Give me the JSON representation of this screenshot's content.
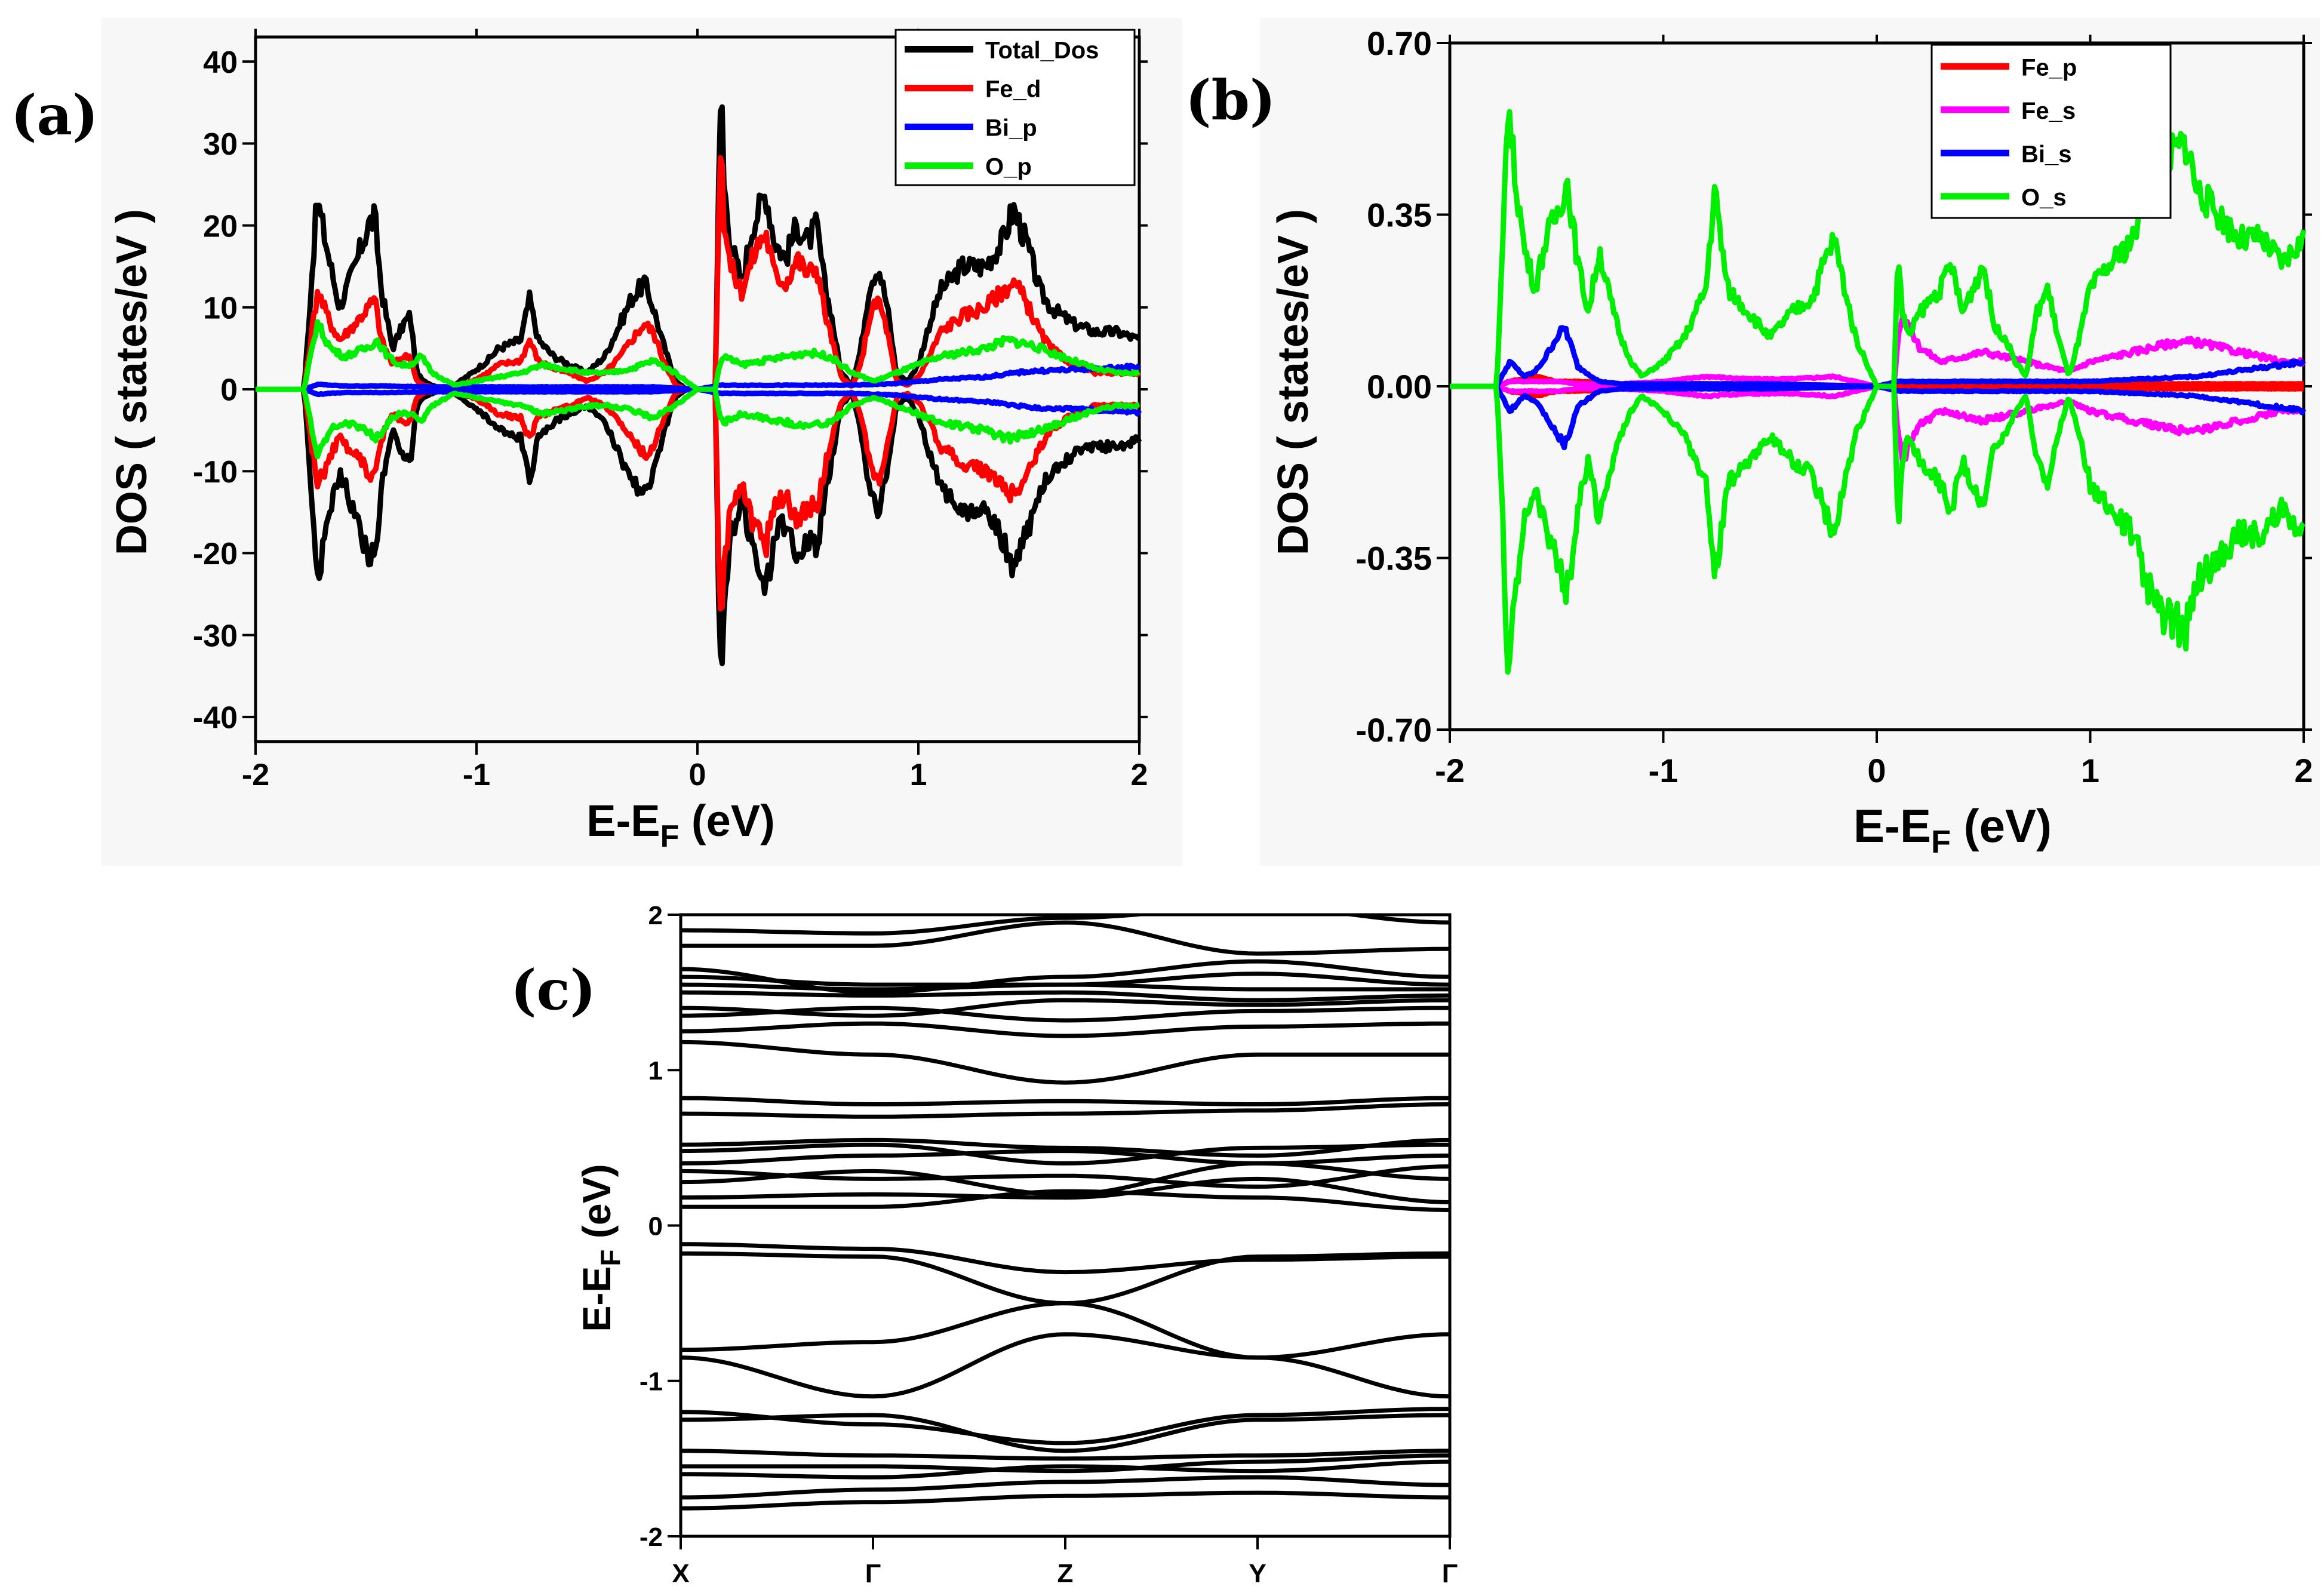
{
  "figure": {
    "panel_labels": [
      "(a)",
      "(b)",
      "(c)"
    ]
  },
  "chart_data": [
    {
      "id": "a",
      "type": "line",
      "title": "",
      "xlabel": "E-E",
      "xlabel_sub": "F",
      "xlabel_suffix": " (eV)",
      "ylabel": "DOS ( states/eV )",
      "xlim": [
        -2,
        2
      ],
      "ylim": [
        -43,
        43
      ],
      "xticks": [
        -2,
        -1,
        0,
        1,
        2
      ],
      "xtick_labels": [
        "-2",
        "-1",
        "0",
        "1",
        "2"
      ],
      "yticks": [
        -40,
        -30,
        -20,
        -10,
        0,
        10,
        20,
        30,
        40
      ],
      "ytick_labels": [
        "-40",
        "-30",
        "-20",
        "-10",
        "0",
        "10",
        "20",
        "30",
        "40"
      ],
      "symmetric": true,
      "legend_position": "top-right",
      "series": [
        {
          "name": "Total_Dos",
          "color": "#000000",
          "x": [
            -2.0,
            -1.78,
            -1.73,
            -1.72,
            -1.66,
            -1.62,
            -1.55,
            -1.49,
            -1.46,
            -1.43,
            -1.38,
            -1.33,
            -1.3,
            -1.27,
            -1.24,
            -1.2,
            -1.15,
            -1.1,
            -1.02,
            -0.95,
            -0.9,
            -0.8,
            -0.76,
            -0.72,
            -0.65,
            -0.58,
            -0.5,
            -0.42,
            -0.35,
            -0.3,
            -0.24,
            -0.2,
            -0.16,
            -0.1,
            -0.05,
            0.0,
            0.08,
            0.1,
            0.11,
            0.12,
            0.15,
            0.2,
            0.25,
            0.28,
            0.31,
            0.35,
            0.4,
            0.45,
            0.5,
            0.54,
            0.58,
            0.6,
            0.65,
            0.7,
            0.74,
            0.78,
            0.82,
            0.86,
            0.9,
            0.95,
            1.0,
            1.05,
            1.1,
            1.2,
            1.3,
            1.38,
            1.43,
            1.46,
            1.5,
            1.55,
            1.6,
            1.7,
            1.8,
            1.9,
            2.0
          ],
          "y": [
            0,
            0,
            20,
            23,
            15,
            10,
            15,
            20,
            21,
            12,
            5,
            8,
            9,
            2,
            1,
            0.5,
            0,
            0.5,
            2,
            3.5,
            5,
            6,
            11,
            6,
            4,
            3,
            2,
            4,
            8,
            11,
            13,
            10,
            6,
            1,
            0,
            0,
            0,
            30,
            37,
            25,
            18,
            13,
            20,
            22,
            24,
            18,
            16,
            20,
            18,
            20,
            12,
            10,
            2,
            0.5,
            5,
            13,
            15,
            10,
            2,
            1,
            3,
            8,
            12,
            15,
            15,
            18,
            22,
            20,
            17,
            12,
            10,
            8,
            7,
            7,
            6
          ]
        },
        {
          "name": "Fe_d",
          "color": "#ff0000",
          "x": [
            -2.0,
            -1.78,
            -1.73,
            -1.72,
            -1.66,
            -1.62,
            -1.55,
            -1.49,
            -1.46,
            -1.43,
            -1.38,
            -1.33,
            -1.3,
            -1.27,
            -1.24,
            -1.2,
            -1.15,
            -1.1,
            -1.02,
            -0.95,
            -0.9,
            -0.8,
            -0.76,
            -0.72,
            -0.65,
            -0.58,
            -0.5,
            -0.42,
            -0.35,
            -0.3,
            -0.24,
            -0.2,
            -0.16,
            -0.1,
            -0.05,
            0.0,
            0.08,
            0.1,
            0.11,
            0.12,
            0.15,
            0.2,
            0.25,
            0.28,
            0.31,
            0.35,
            0.4,
            0.45,
            0.5,
            0.54,
            0.58,
            0.6,
            0.65,
            0.7,
            0.74,
            0.78,
            0.82,
            0.86,
            0.9,
            0.95,
            1.0,
            1.05,
            1.1,
            1.2,
            1.3,
            1.38,
            1.43,
            1.46,
            1.5,
            1.55,
            1.6,
            1.7,
            1.8,
            1.9,
            2.0
          ],
          "y": [
            0,
            0,
            10,
            12,
            8,
            6,
            8,
            10,
            11,
            6,
            3,
            4,
            4,
            1,
            0.5,
            0.3,
            0,
            0.3,
            1,
            2,
            3,
            3.5,
            6,
            3.5,
            2.5,
            2,
            1,
            2,
            4,
            6,
            8,
            7,
            4,
            0.5,
            0,
            0,
            0,
            26,
            31,
            21,
            15,
            12,
            16,
            18,
            19,
            14,
            13,
            16,
            14,
            15,
            9,
            7,
            1.5,
            0.3,
            3,
            9,
            11,
            7,
            1,
            0.5,
            1.5,
            4,
            7,
            9,
            10,
            12,
            13,
            12,
            10,
            7,
            5,
            3,
            2,
            2,
            2
          ]
        },
        {
          "name": "Bi_p",
          "color": "#0000ff",
          "x": [
            -2.0,
            -1.78,
            -1.72,
            -1.6,
            -1.4,
            -1.2,
            -1.0,
            -0.8,
            -0.6,
            -0.4,
            -0.2,
            0.0,
            0.1,
            0.3,
            0.5,
            0.7,
            0.9,
            1.1,
            1.3,
            1.5,
            1.7,
            1.9,
            2.0
          ],
          "y": [
            0,
            0,
            0.6,
            0.4,
            0.4,
            0.3,
            0.3,
            0.3,
            0.3,
            0.3,
            0.3,
            0,
            0.5,
            0.5,
            0.5,
            0.5,
            0.7,
            1.2,
            1.5,
            2.2,
            2.4,
            2.6,
            2.8
          ]
        },
        {
          "name": "O_p",
          "color": "#00ee00",
          "x": [
            -2.0,
            -1.78,
            -1.73,
            -1.72,
            -1.66,
            -1.6,
            -1.5,
            -1.45,
            -1.4,
            -1.35,
            -1.3,
            -1.25,
            -1.2,
            -1.1,
            -1.0,
            -0.9,
            -0.8,
            -0.7,
            -0.6,
            -0.5,
            -0.4,
            -0.3,
            -0.2,
            -0.1,
            0.0,
            0.08,
            0.1,
            0.12,
            0.2,
            0.3,
            0.4,
            0.5,
            0.6,
            0.7,
            0.8,
            0.9,
            1.0,
            1.1,
            1.2,
            1.3,
            1.4,
            1.5,
            1.6,
            1.7,
            1.8,
            1.9,
            2.0
          ],
          "y": [
            0,
            0,
            7,
            8,
            5,
            4,
            5,
            6,
            4,
            3,
            3,
            4,
            2,
            0.5,
            1,
            1.5,
            2,
            3,
            2.5,
            2,
            2,
            2.5,
            3.5,
            2,
            0,
            0,
            3,
            4,
            3,
            3.5,
            4,
            4.5,
            4,
            2,
            1,
            2,
            3,
            4,
            4.5,
            5,
            6,
            5.5,
            4.5,
            3.5,
            2.5,
            2,
            2
          ]
        }
      ]
    },
    {
      "id": "b",
      "type": "line",
      "title": "",
      "xlabel": "E-E",
      "xlabel_sub": "F",
      "xlabel_suffix": " (eV)",
      "ylabel": "DOS ( states/eV )",
      "xlim": [
        -2,
        2
      ],
      "ylim": [
        -0.7,
        0.7
      ],
      "xticks": [
        -2,
        -1,
        0,
        1,
        2
      ],
      "xtick_labels": [
        "-2",
        "-1",
        "0",
        "1",
        "2"
      ],
      "yticks": [
        -0.7,
        -0.35,
        0,
        0.35,
        0.7
      ],
      "ytick_labels": [
        "-0.70",
        "-0.35",
        "0.00",
        "0.35",
        "0.70"
      ],
      "symmetric": true,
      "legend_position": "top-right",
      "series": [
        {
          "name": "Fe_p",
          "color": "#ff0000",
          "x": [
            -2.0,
            -1.78,
            -1.72,
            -1.6,
            -1.5,
            -1.4,
            -1.2,
            -1.0,
            -0.5,
            0.0,
            0.1,
            0.5,
            1.0,
            1.5,
            2.0
          ],
          "y": [
            0,
            0,
            0.01,
            0.02,
            0.01,
            0.01,
            0.005,
            0.005,
            0.005,
            0,
            0.005,
            0.005,
            0.005,
            0.005,
            0.005
          ]
        },
        {
          "name": "Fe_s",
          "color": "#ff00ff",
          "x": [
            -2.0,
            -1.78,
            -1.72,
            -1.6,
            -1.5,
            -1.4,
            -1.3,
            -1.2,
            -1.0,
            -0.8,
            -0.6,
            -0.4,
            -0.2,
            0.0,
            0.08,
            0.1,
            0.12,
            0.2,
            0.3,
            0.4,
            0.5,
            0.6,
            0.7,
            0.8,
            0.9,
            1.0,
            1.1,
            1.2,
            1.3,
            1.4,
            1.5,
            1.6,
            1.7,
            1.8,
            1.9,
            2.0
          ],
          "y": [
            0,
            0,
            0.01,
            0.01,
            0.01,
            0.005,
            0.005,
            0.005,
            0.01,
            0.02,
            0.015,
            0.015,
            0.02,
            0,
            0,
            0.1,
            0.15,
            0.08,
            0.05,
            0.06,
            0.07,
            0.06,
            0.05,
            0.04,
            0.03,
            0.05,
            0.06,
            0.07,
            0.08,
            0.09,
            0.09,
            0.08,
            0.07,
            0.06,
            0.05,
            0.05
          ]
        },
        {
          "name": "Bi_s",
          "color": "#0000ff",
          "x": [
            -2.0,
            -1.78,
            -1.72,
            -1.65,
            -1.6,
            -1.55,
            -1.5,
            -1.46,
            -1.4,
            -1.3,
            -1.2,
            -1.0,
            -0.5,
            0.0,
            0.1,
            0.5,
            1.0,
            1.5,
            2.0
          ],
          "y": [
            0,
            0,
            0.05,
            0.02,
            0.03,
            0.06,
            0.1,
            0.12,
            0.04,
            0.01,
            0.005,
            0.005,
            0.005,
            0,
            0.01,
            0.01,
            0.01,
            0.02,
            0.05
          ]
        },
        {
          "name": "O_s",
          "color": "#00ee00",
          "x": [
            -2.0,
            -1.78,
            -1.75,
            -1.73,
            -1.7,
            -1.65,
            -1.6,
            -1.55,
            -1.5,
            -1.45,
            -1.4,
            -1.35,
            -1.3,
            -1.25,
            -1.2,
            -1.15,
            -1.1,
            -1.0,
            -0.9,
            -0.8,
            -0.76,
            -0.7,
            -0.6,
            -0.5,
            -0.4,
            -0.3,
            -0.25,
            -0.2,
            -0.15,
            -0.1,
            0.0,
            0.08,
            0.1,
            0.12,
            0.15,
            0.2,
            0.3,
            0.35,
            0.4,
            0.45,
            0.5,
            0.55,
            0.6,
            0.65,
            0.7,
            0.75,
            0.8,
            0.85,
            0.9,
            0.95,
            1.0,
            1.1,
            1.2,
            1.3,
            1.4,
            1.45,
            1.5,
            1.6,
            1.7,
            1.8,
            1.9,
            2.0
          ],
          "y": [
            0,
            0,
            0.3,
            0.59,
            0.45,
            0.28,
            0.2,
            0.3,
            0.35,
            0.42,
            0.25,
            0.15,
            0.28,
            0.18,
            0.1,
            0.05,
            0.02,
            0.05,
            0.1,
            0.2,
            0.4,
            0.2,
            0.15,
            0.1,
            0.15,
            0.18,
            0.25,
            0.3,
            0.2,
            0.1,
            0,
            0,
            0.28,
            0.15,
            0.1,
            0.15,
            0.2,
            0.25,
            0.15,
            0.2,
            0.25,
            0.12,
            0.1,
            0.05,
            0.02,
            0.15,
            0.2,
            0.1,
            0.02,
            0.1,
            0.2,
            0.25,
            0.3,
            0.45,
            0.48,
            0.5,
            0.4,
            0.35,
            0.3,
            0.3,
            0.25,
            0.3
          ]
        }
      ]
    },
    {
      "id": "c",
      "type": "line",
      "title": "",
      "xlabel": "",
      "ylabel": "E-E",
      "ylabel_sub": "F",
      "ylabel_suffix": " (eV)",
      "xlim": [
        0,
        4
      ],
      "ylim": [
        -2,
        2
      ],
      "xticks": [
        0,
        1,
        2,
        3,
        4
      ],
      "xtick_labels": [
        "X",
        "Γ",
        "Z",
        "Y",
        "Γ"
      ],
      "yticks": [
        -2,
        -1,
        0,
        1,
        2
      ],
      "ytick_labels": [
        "-2",
        "-1",
        "0",
        "1",
        "2"
      ],
      "band_color": "#000000",
      "bands": [
        [
          -1.82,
          -1.78,
          -1.74,
          -1.72,
          -1.75
        ],
        [
          -1.75,
          -1.7,
          -1.65,
          -1.62,
          -1.67
        ],
        [
          -1.6,
          -1.62,
          -1.55,
          -1.58,
          -1.52
        ],
        [
          -1.55,
          -1.55,
          -1.58,
          -1.52,
          -1.48
        ],
        [
          -1.45,
          -1.48,
          -1.5,
          -1.48,
          -1.45
        ],
        [
          -1.25,
          -1.22,
          -1.45,
          -1.25,
          -1.22
        ],
        [
          -1.2,
          -1.28,
          -1.4,
          -1.22,
          -1.18
        ],
        [
          -0.85,
          -1.1,
          -0.7,
          -0.85,
          -1.1
        ],
        [
          -0.8,
          -0.75,
          -0.5,
          -0.85,
          -0.7
        ],
        [
          -0.18,
          -0.2,
          -0.5,
          -0.2,
          -0.18
        ],
        [
          -0.12,
          -0.15,
          -0.3,
          -0.22,
          -0.2
        ],
        [
          0.12,
          0.12,
          0.22,
          0.18,
          0.1
        ],
        [
          0.18,
          0.2,
          0.18,
          0.3,
          0.15
        ],
        [
          0.28,
          0.35,
          0.2,
          0.4,
          0.3
        ],
        [
          0.35,
          0.3,
          0.32,
          0.25,
          0.38
        ],
        [
          0.4,
          0.45,
          0.48,
          0.4,
          0.45
        ],
        [
          0.48,
          0.52,
          0.4,
          0.5,
          0.52
        ],
        [
          0.52,
          0.55,
          0.5,
          0.45,
          0.55
        ],
        [
          0.72,
          0.7,
          0.72,
          0.74,
          0.78
        ],
        [
          0.82,
          0.78,
          0.8,
          0.78,
          0.82
        ],
        [
          1.18,
          1.1,
          0.92,
          1.1,
          1.1
        ],
        [
          1.25,
          1.3,
          1.22,
          1.28,
          1.3
        ],
        [
          1.35,
          1.4,
          1.32,
          1.38,
          1.4
        ],
        [
          1.4,
          1.35,
          1.45,
          1.42,
          1.45
        ],
        [
          1.5,
          1.48,
          1.5,
          1.45,
          1.48
        ],
        [
          1.55,
          1.52,
          1.55,
          1.52,
          1.52
        ],
        [
          1.6,
          1.55,
          1.55,
          1.62,
          1.55
        ],
        [
          1.65,
          1.5,
          1.6,
          1.7,
          1.6
        ],
        [
          1.8,
          1.8,
          1.95,
          1.75,
          1.78
        ],
        [
          1.9,
          1.88,
          1.98,
          2.05,
          1.95
        ]
      ]
    }
  ]
}
